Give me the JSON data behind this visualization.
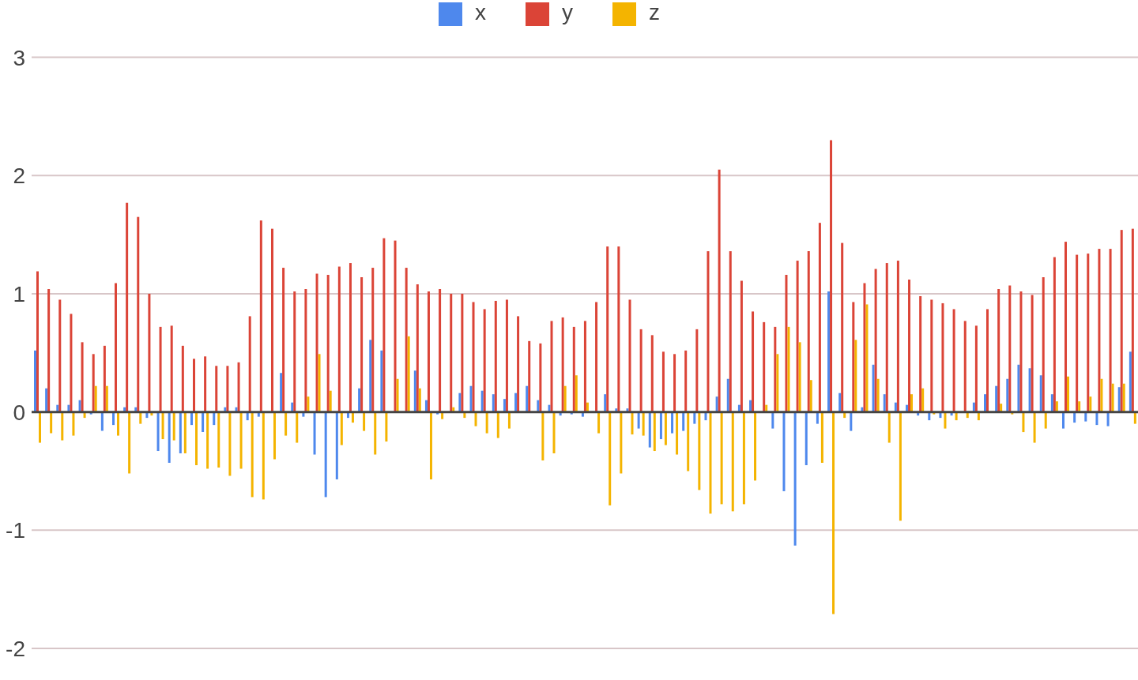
{
  "chart_data": {
    "type": "bar",
    "categories": [
      null,
      null,
      null,
      null,
      null,
      null,
      null,
      null,
      null,
      null,
      null,
      null,
      null,
      null,
      null,
      null,
      null,
      null,
      null,
      null,
      null,
      null,
      null,
      null,
      null,
      null,
      null,
      null,
      null,
      null,
      null,
      null,
      null,
      null,
      null,
      null,
      null,
      null,
      null,
      null,
      null,
      null,
      null,
      null,
      null,
      null,
      null,
      null,
      null,
      null,
      null,
      null,
      null,
      null,
      null,
      null,
      null,
      null,
      null,
      null,
      null,
      null,
      null,
      null,
      null,
      null,
      null,
      null,
      null,
      null,
      null,
      null,
      null,
      null,
      null,
      null,
      null,
      null,
      null,
      null,
      null,
      null,
      null,
      null,
      null,
      null,
      null,
      null,
      null,
      null,
      null,
      null,
      null,
      null,
      null,
      null,
      null,
      null,
      null
    ],
    "series": [
      {
        "name": "x",
        "color": "#4e88ed",
        "values": [
          0.52,
          0.2,
          0.06,
          0.06,
          0.1,
          -0.02,
          -0.16,
          -0.11,
          0.04,
          0.04,
          -0.05,
          -0.33,
          -0.43,
          -0.35,
          -0.11,
          -0.17,
          -0.11,
          0.04,
          0.04,
          -0.07,
          -0.04,
          0,
          0.33,
          0.08,
          -0.04,
          -0.36,
          -0.72,
          -0.57,
          -0.05,
          0.2,
          0.61,
          0.52,
          0,
          0,
          0.35,
          0.1,
          -0.02,
          null,
          0.16,
          0.22,
          0.18,
          0.15,
          0.11,
          0.16,
          0.22,
          0.1,
          0.06,
          -0.03,
          -0.02,
          -0.04,
          null,
          0.15,
          0.03,
          0.03,
          -0.14,
          -0.3,
          -0.23,
          -0.18,
          -0.16,
          -0.1,
          -0.07,
          0.13,
          0.28,
          0.06,
          0.1,
          0,
          -0.14,
          -0.67,
          -1.13,
          -0.45,
          -0.1,
          1.02,
          0.16,
          -0.16,
          0.04,
          0.4,
          0.15,
          0.08,
          0.06,
          -0.03,
          -0.07,
          -0.05,
          -0.03,
          0,
          0.08,
          0.15,
          0.22,
          0.28,
          0.4,
          0.37,
          0.31,
          0.15,
          -0.14,
          -0.09,
          -0.08,
          -0.11,
          -0.12,
          0.21,
          0.51
        ]
      },
      {
        "name": "y",
        "color": "#db4437",
        "values": [
          1.19,
          1.04,
          0.95,
          0.83,
          0.59,
          0.49,
          0.56,
          1.09,
          1.77,
          1.65,
          1.0,
          0.72,
          0.73,
          0.56,
          0.45,
          0.47,
          0.39,
          0.39,
          0.42,
          0.81,
          1.62,
          1.55,
          1.22,
          1.02,
          1.04,
          1.17,
          1.16,
          1.23,
          1.26,
          1.14,
          1.22,
          1.47,
          1.45,
          1.22,
          1.08,
          1.02,
          1.04,
          1.0,
          1.0,
          0.93,
          0.87,
          0.94,
          0.95,
          0.81,
          0.6,
          0.58,
          0.77,
          0.8,
          0.72,
          0.77,
          0.93,
          1.4,
          1.4,
          0.95,
          0.7,
          0.65,
          0.51,
          0.49,
          0.52,
          0.7,
          1.36,
          2.05,
          1.36,
          1.11,
          0.85,
          0.76,
          0.72,
          1.16,
          1.28,
          1.36,
          1.6,
          2.3,
          1.43,
          0.93,
          1.09,
          1.21,
          1.26,
          1.28,
          1.12,
          0.98,
          0.95,
          0.92,
          0.87,
          0.77,
          0.73,
          0.87,
          1.04,
          1.07,
          1.02,
          0.99,
          1.14,
          1.31,
          1.44,
          1.33,
          1.34,
          1.38,
          1.38,
          1.54,
          1.55
        ]
      },
      {
        "name": "z",
        "color": "#f4b400",
        "values": [
          -0.26,
          -0.18,
          -0.24,
          -0.2,
          -0.05,
          0.22,
          0.22,
          -0.2,
          -0.52,
          -0.1,
          -0.03,
          -0.23,
          -0.24,
          -0.35,
          -0.45,
          -0.48,
          -0.47,
          -0.54,
          -0.48,
          -0.72,
          -0.74,
          -0.4,
          -0.2,
          -0.26,
          0.13,
          0.49,
          0.18,
          -0.28,
          -0.09,
          -0.16,
          -0.36,
          -0.25,
          0.28,
          0.64,
          0.2,
          -0.57,
          -0.06,
          0.04,
          -0.05,
          -0.12,
          -0.18,
          -0.22,
          -0.14,
          0,
          0,
          -0.41,
          -0.35,
          0.22,
          0.31,
          0.08,
          -0.18,
          -0.79,
          -0.52,
          -0.19,
          -0.2,
          -0.33,
          -0.28,
          -0.36,
          -0.5,
          -0.66,
          -0.86,
          -0.78,
          -0.84,
          -0.78,
          -0.58,
          0.06,
          0.49,
          0.72,
          0.59,
          0.27,
          -0.43,
          -1.71,
          -0.05,
          0.61,
          0.91,
          0.28,
          -0.26,
          -0.92,
          0.15,
          0.2,
          -0.02,
          -0.14,
          -0.07,
          -0.05,
          -0.07,
          0,
          0.07,
          -0.02,
          -0.17,
          -0.26,
          -0.14,
          0.09,
          0.3,
          0.09,
          0.13,
          0.28,
          0.24,
          0.24,
          -0.1
        ]
      }
    ],
    "ylim": [
      -2,
      3
    ],
    "yticks": [
      -2,
      -1,
      0,
      1,
      2,
      3
    ],
    "grid": "y",
    "legend": "top",
    "tick_labels": "y"
  }
}
